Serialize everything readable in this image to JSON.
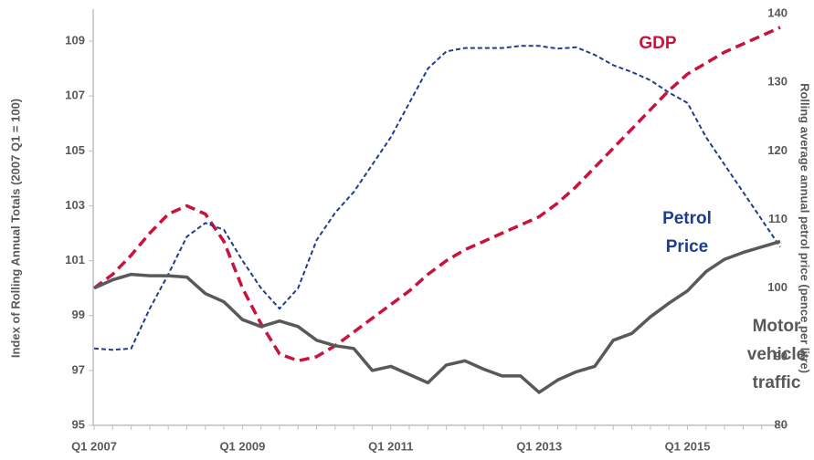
{
  "chart_data": {
    "type": "line",
    "y_label": "Index of Rolling Annual Totals (2007 Q1 = 100)",
    "y2_label": "Rolling average annual petrol price (pence per litre)",
    "categories": [
      "Q1 2007",
      null,
      null,
      null,
      null,
      null,
      null,
      null,
      "Q1 2009",
      null,
      null,
      null,
      null,
      null,
      null,
      null,
      "Q1 2011",
      null,
      null,
      null,
      null,
      null,
      null,
      null,
      "Q1 2013",
      null,
      null,
      null,
      null,
      null,
      null,
      null,
      "Q1 2015",
      null,
      null,
      null,
      null,
      null
    ],
    "ylim": [
      95,
      110
    ],
    "yticks": [
      95,
      97,
      99,
      101,
      103,
      105,
      107,
      109
    ],
    "y2lim": [
      80,
      140
    ],
    "y2ticks": [
      80,
      90,
      100,
      110,
      120,
      130,
      140
    ],
    "series": [
      {
        "name": "GDP",
        "color": "#c8143c",
        "dashed": true,
        "width": 3.5,
        "values": [
          100.0,
          100.5,
          101.2,
          102.0,
          102.7,
          103.0,
          102.7,
          101.7,
          100.0,
          98.7,
          97.6,
          97.35,
          97.5,
          97.9,
          98.4,
          98.9,
          99.4,
          99.9,
          100.5,
          101.0,
          101.4,
          101.7,
          102.0,
          102.3,
          102.6,
          103.1,
          103.7,
          104.4,
          105.1,
          105.8,
          106.5,
          107.2,
          107.8,
          108.2,
          108.6,
          108.9,
          109.2,
          109.5
        ]
      },
      {
        "name": "Petrol Price",
        "color": "#1f3d8c",
        "dashed": true,
        "width": 2,
        "axis": "y2",
        "values": [
          91.2,
          91.0,
          91.2,
          97,
          102,
          107.5,
          109.5,
          108.5,
          104,
          100,
          97,
          100,
          107,
          111,
          114,
          118,
          122,
          127,
          132,
          134.5,
          135,
          135,
          135,
          135.3,
          135.3,
          134.9,
          135.1,
          134,
          132.5,
          131.5,
          130.3,
          128.5,
          127,
          122,
          118,
          114,
          110,
          106
        ]
      },
      {
        "name": "Motor vehicle traffic",
        "color": "#595959",
        "dashed": false,
        "width": 3.5,
        "values": [
          100.0,
          100.3,
          100.5,
          100.45,
          100.45,
          100.4,
          99.8,
          99.5,
          98.85,
          98.6,
          98.8,
          98.6,
          98.1,
          97.9,
          97.8,
          97.0,
          97.15,
          96.85,
          96.55,
          97.2,
          97.35,
          97.05,
          96.8,
          96.8,
          96.2,
          96.65,
          96.95,
          97.15,
          98.1,
          98.35,
          98.95,
          99.45,
          99.9,
          100.6,
          101.05,
          101.3,
          101.5,
          101.7
        ]
      }
    ]
  }
}
